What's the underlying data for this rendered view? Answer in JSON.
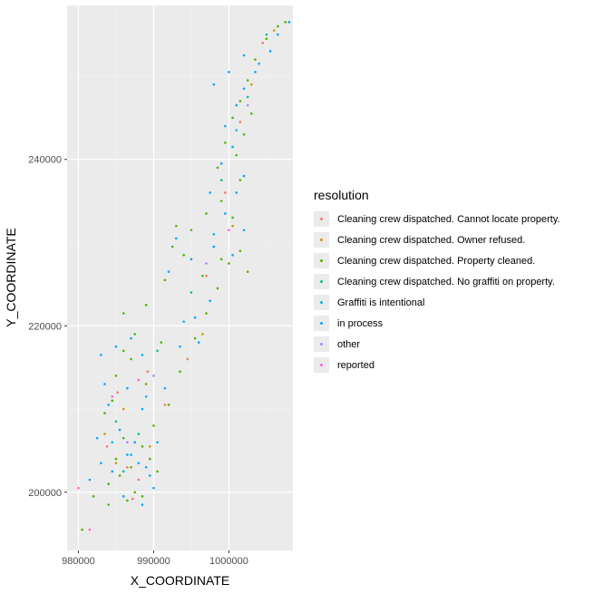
{
  "chart_data": {
    "type": "scatter",
    "title": "",
    "xlabel": "X_COORDINATE",
    "ylabel": "Y_COORDINATE",
    "xlim": [
      978500,
      1008500
    ],
    "ylim": [
      193000,
      258500
    ],
    "xticks": [
      {
        "value": 980000,
        "label": "980000"
      },
      {
        "value": 990000,
        "label": "990000"
      },
      {
        "value": 1000000,
        "label": "1000000"
      }
    ],
    "yticks": [
      {
        "value": 200000,
        "label": "200000"
      },
      {
        "value": 220000,
        "label": "220000"
      },
      {
        "value": 240000,
        "label": "240000"
      }
    ],
    "grid": true,
    "panel_background": "#ebebeb",
    "legend_position": "right",
    "legend_title": "resolution",
    "series": [
      {
        "name": "Cleaning crew dispatched.  Cannot locate property.",
        "color": "#F8766D",
        "points": [
          [
            986500,
            203000
          ],
          [
            988000,
            201500
          ],
          [
            985200,
            212000
          ],
          [
            991500,
            210500
          ],
          [
            994500,
            216000
          ],
          [
            997000,
            226000
          ],
          [
            999500,
            236000
          ],
          [
            1001500,
            244500
          ],
          [
            1004500,
            254000
          ],
          [
            987200,
            199200
          ],
          [
            983800,
            205500
          ],
          [
            989200,
            214500
          ]
        ]
      },
      {
        "name": "Cleaning crew dispatched.  Owner refused.",
        "color": "#C49A00",
        "points": [
          [
            985000,
            203500
          ],
          [
            989500,
            205500
          ],
          [
            986000,
            210000
          ],
          [
            996500,
            219000
          ],
          [
            1000500,
            232000
          ],
          [
            1003000,
            249000
          ],
          [
            1006000,
            255500
          ],
          [
            983500,
            207000
          ]
        ]
      },
      {
        "name": "Cleaning crew dispatched.  Property cleaned.",
        "color": "#53B400",
        "points": [
          [
            984000,
            201000
          ],
          [
            985000,
            204000
          ],
          [
            986000,
            206500
          ],
          [
            987000,
            203000
          ],
          [
            988500,
            205500
          ],
          [
            989500,
            204000
          ],
          [
            990500,
            202500
          ],
          [
            987500,
            200000
          ],
          [
            986500,
            199000
          ],
          [
            985500,
            202000
          ],
          [
            983500,
            209500
          ],
          [
            985000,
            214000
          ],
          [
            987000,
            216000
          ],
          [
            989000,
            213000
          ],
          [
            990000,
            208000
          ],
          [
            984500,
            211000
          ],
          [
            986000,
            217000
          ],
          [
            987500,
            219000
          ],
          [
            992000,
            210500
          ],
          [
            993500,
            214500
          ],
          [
            995500,
            218500
          ],
          [
            997000,
            221500
          ],
          [
            998500,
            224500
          ],
          [
            996500,
            226000
          ],
          [
            994000,
            228500
          ],
          [
            992500,
            229500
          ],
          [
            991500,
            225500
          ],
          [
            993000,
            232000
          ],
          [
            995000,
            231500
          ],
          [
            997000,
            233500
          ],
          [
            999000,
            235000
          ],
          [
            1000500,
            233000
          ],
          [
            1001500,
            229000
          ],
          [
            1000000,
            227500
          ],
          [
            998500,
            239000
          ],
          [
            999500,
            242000
          ],
          [
            1001000,
            240500
          ],
          [
            1000500,
            245000
          ],
          [
            1001500,
            247000
          ],
          [
            1002500,
            249500
          ],
          [
            1003500,
            252000
          ],
          [
            1005000,
            254500
          ],
          [
            1006500,
            256000
          ],
          [
            1007500,
            256500
          ],
          [
            1003000,
            245500
          ],
          [
            1002000,
            243000
          ],
          [
            1001500,
            237500
          ],
          [
            980500,
            195500
          ],
          [
            982000,
            199500
          ],
          [
            984000,
            198500
          ],
          [
            988500,
            199500
          ],
          [
            986000,
            221500
          ],
          [
            989000,
            222500
          ],
          [
            991000,
            218000
          ],
          [
            1002500,
            226500
          ],
          [
            999000,
            228000
          ]
        ]
      },
      {
        "name": "Cleaning crew dispatched. No graffiti on property.",
        "color": "#00C094",
        "points": [
          [
            986000,
            202500
          ],
          [
            988000,
            207000
          ],
          [
            990500,
            217000
          ],
          [
            995000,
            224000
          ],
          [
            999000,
            237500
          ],
          [
            1002500,
            247500
          ],
          [
            985000,
            208500
          ],
          [
            1005000,
            255000
          ]
        ]
      },
      {
        "name": "Graffiti is intentional",
        "color": "#00B6EB",
        "points": [
          [
            987000,
            204500
          ],
          [
            989000,
            211500
          ],
          [
            994000,
            220500
          ],
          [
            998000,
            231000
          ],
          [
            1001000,
            243500
          ],
          [
            1004000,
            251500
          ],
          [
            984500,
            206000
          ]
        ]
      },
      {
        "name": "in process",
        "color": "#06A4FF",
        "points": [
          [
            984500,
            202500
          ],
          [
            986500,
            204500
          ],
          [
            988000,
            203500
          ],
          [
            989500,
            202000
          ],
          [
            987500,
            206000
          ],
          [
            985500,
            207500
          ],
          [
            984000,
            210500
          ],
          [
            986500,
            212500
          ],
          [
            988500,
            210000
          ],
          [
            990500,
            206000
          ],
          [
            985000,
            217500
          ],
          [
            987000,
            218500
          ],
          [
            983500,
            213000
          ],
          [
            982500,
            206500
          ],
          [
            983000,
            203500
          ],
          [
            981500,
            201500
          ],
          [
            986000,
            199500
          ],
          [
            988500,
            198500
          ],
          [
            990000,
            200500
          ],
          [
            993500,
            217500
          ],
          [
            995500,
            221000
          ],
          [
            997500,
            223000
          ],
          [
            992000,
            226500
          ],
          [
            993000,
            230500
          ],
          [
            995000,
            228000
          ],
          [
            997500,
            236000
          ],
          [
            999500,
            233500
          ],
          [
            1001000,
            236000
          ],
          [
            999000,
            239500
          ],
          [
            1000500,
            241500
          ],
          [
            1002000,
            238000
          ],
          [
            1001000,
            246500
          ],
          [
            1002000,
            248500
          ],
          [
            1003500,
            250500
          ],
          [
            1005500,
            253000
          ],
          [
            1006500,
            255000
          ],
          [
            1008000,
            256500
          ],
          [
            998000,
            249000
          ],
          [
            1000000,
            250500
          ],
          [
            1002000,
            252500
          ],
          [
            1000500,
            228500
          ],
          [
            1002000,
            231500
          ],
          [
            983000,
            216500
          ],
          [
            988500,
            216500
          ],
          [
            991500,
            212500
          ],
          [
            996000,
            218000
          ],
          [
            998000,
            229500
          ],
          [
            999500,
            244000
          ],
          [
            989000,
            203000
          ]
        ]
      },
      {
        "name": "other",
        "color": "#A58AFF",
        "points": [
          [
            986500,
            206000
          ],
          [
            990000,
            214000
          ],
          [
            997000,
            227500
          ],
          [
            1002500,
            246500
          ]
        ]
      },
      {
        "name": "reported",
        "color": "#FB61D7",
        "points": [
          [
            980000,
            200500
          ],
          [
            981500,
            195500
          ],
          [
            984500,
            211500
          ],
          [
            988000,
            213500
          ],
          [
            1000000,
            231500
          ]
        ]
      }
    ]
  }
}
